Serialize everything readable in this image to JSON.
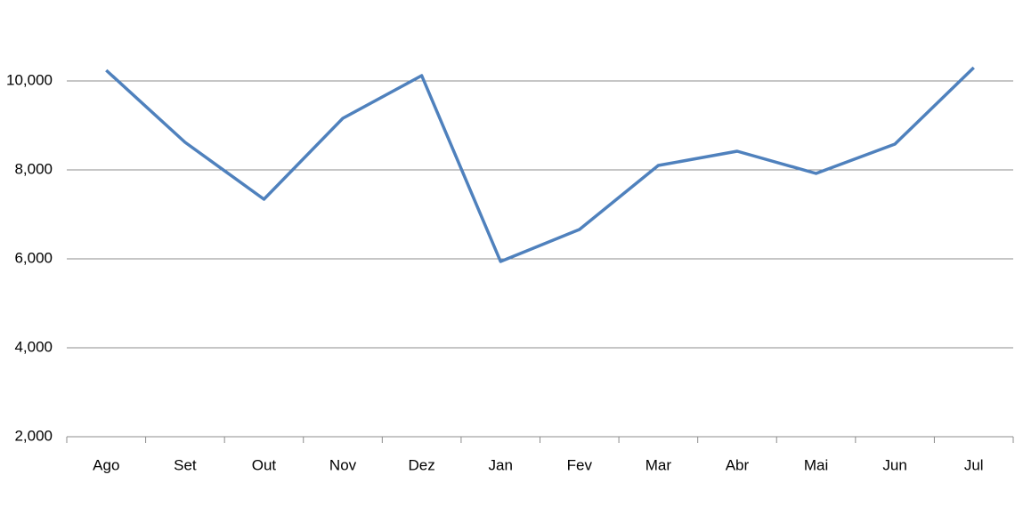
{
  "chart_data": {
    "type": "line",
    "categories": [
      "Ago",
      "Set",
      "Out",
      "Nov",
      "Dez",
      "Jan",
      "Fev",
      "Mar",
      "Abr",
      "Mai",
      "Jun",
      "Jul"
    ],
    "series": [
      {
        "color": "#4f81bd",
        "values": [
          10240,
          8620,
          7340,
          9160,
          10120,
          5940,
          6660,
          8100,
          8420,
          7920,
          8580,
          10300
        ]
      }
    ],
    "ylim": [
      2000,
      11000
    ],
    "yticks": [
      {
        "value": 2000,
        "label": "2,000"
      },
      {
        "value": 4000,
        "label": "4,000"
      },
      {
        "value": 6000,
        "label": "6,000"
      },
      {
        "value": 8000,
        "label": "8,000"
      },
      {
        "value": 10000,
        "label": "10,000"
      }
    ],
    "grid": true
  }
}
